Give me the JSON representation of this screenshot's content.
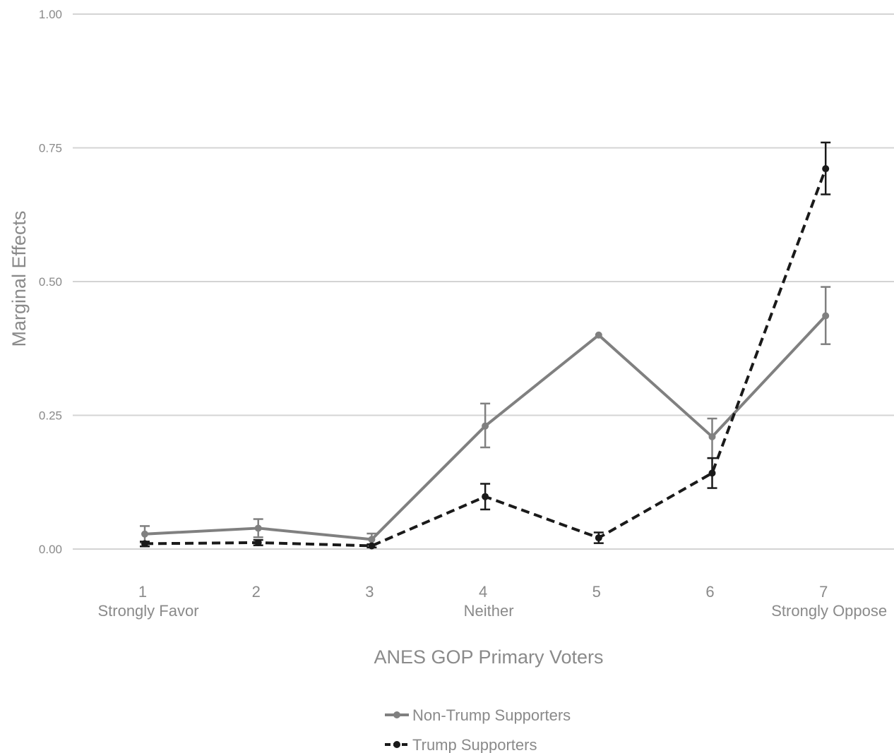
{
  "chart_data": {
    "type": "line",
    "xlabel": "ANES GOP Primary Voters",
    "ylabel": "Marginal Effects",
    "ylim": [
      0,
      1
    ],
    "y_ticks": [
      "0.00",
      "0.25",
      "0.50",
      "0.75",
      "1.00"
    ],
    "y_tick_values": [
      0,
      0.25,
      0.5,
      0.75,
      1.0
    ],
    "categories": [
      "1",
      "2",
      "3",
      "4",
      "5",
      "6",
      "7"
    ],
    "category_sublabels": [
      "Strongly Favor",
      "",
      "",
      "Neither",
      "",
      "",
      "Strongly Oppose"
    ],
    "grid": "horizontal",
    "legend_position": "bottom",
    "series": [
      {
        "name": "Non-Trump Supporters",
        "color": "#808080",
        "line_style": "solid",
        "values": [
          0.028,
          0.039,
          0.018,
          0.23,
          0.4,
          0.21,
          0.436
        ],
        "lower": [
          0.012,
          0.022,
          0.008,
          0.19,
          0.4,
          0.17,
          0.383
        ],
        "upper": [
          0.043,
          0.056,
          0.029,
          0.272,
          0.4,
          0.244,
          0.49
        ]
      },
      {
        "name": "Trump Supporters",
        "color": "#1a1a1a",
        "line_style": "dashed",
        "values": [
          0.01,
          0.012,
          0.006,
          0.098,
          0.021,
          0.142,
          0.711
        ],
        "lower": [
          0.005,
          0.007,
          0.003,
          0.074,
          0.011,
          0.114,
          0.663
        ],
        "upper": [
          0.014,
          0.017,
          0.009,
          0.122,
          0.031,
          0.17,
          0.76
        ]
      }
    ]
  }
}
